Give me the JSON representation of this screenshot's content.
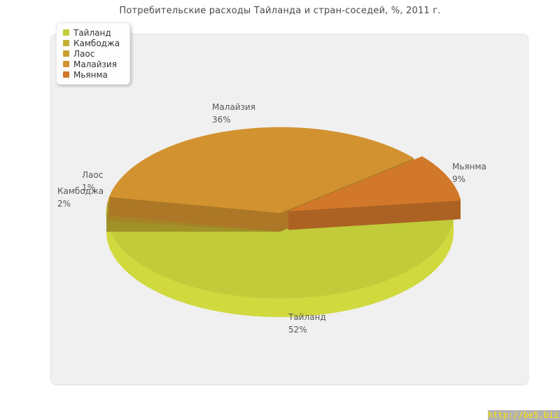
{
  "title": "Потребительские расходы Тайланда и стран-соседей, %, 2011 г.",
  "watermark": {
    "url_text": "http://be5.biz/"
  },
  "chart_data": {
    "type": "pie",
    "style": "3d-pie",
    "title": "Потребительские расходы Тайланда и стран-соседей, %, 2011 г.",
    "unit": "%",
    "categories": [
      "Тайланд",
      "Камбоджа",
      "Лаос",
      "Малайзия",
      "Мьянма"
    ],
    "values": [
      52,
      2,
      1,
      36,
      9
    ],
    "slices": [
      {
        "name": "Тайланд",
        "value": 52,
        "label": "52%",
        "color": "#c2cb3a",
        "exploded": false
      },
      {
        "name": "Камбоджа",
        "value": 2,
        "label": "2%",
        "color": "#c3b232",
        "exploded": false
      },
      {
        "name": "Лаос",
        "value": 1,
        "label": "1%",
        "color": "#c9a12e",
        "exploded": false
      },
      {
        "name": "Малайзия",
        "value": 36,
        "label": "36%",
        "color": "#d2922f",
        "exploded": false
      },
      {
        "name": "Мьянма",
        "value": 9,
        "label": "9%",
        "color": "#d2782b",
        "exploded": true
      }
    ],
    "angular_order": [
      "Камбоджа",
      "Лаос",
      "Малайзия",
      "Мьянма",
      "Тайланд"
    ],
    "start_angle": 180,
    "direction": "clockwise",
    "legend_position": "top-left"
  }
}
